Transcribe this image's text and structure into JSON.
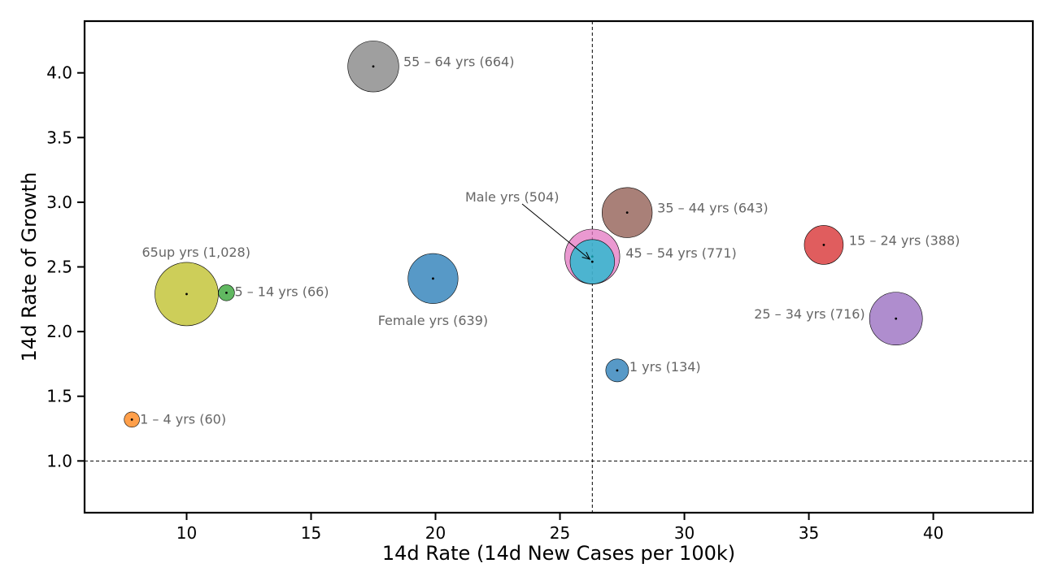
{
  "chart_data": {
    "type": "scatter",
    "title": "",
    "xlabel": "14d Rate (14d New Cases per 100k)",
    "ylabel": "14d Rate of Growth",
    "xlim": [
      5.9,
      44.0
    ],
    "ylim": [
      0.6,
      4.4
    ],
    "xticks": [
      10,
      15,
      20,
      25,
      30,
      35,
      40
    ],
    "yticks": [
      1.0,
      1.5,
      2.0,
      2.5,
      3.0,
      3.5,
      4.0
    ],
    "reference_lines": {
      "x": 26.3,
      "y": 1.0
    },
    "grid": false,
    "points": [
      {
        "label": "1 – 4 yrs (60)",
        "x": 7.8,
        "y": 1.32,
        "size": 60,
        "color": "#ff7f0e"
      },
      {
        "label": "5 – 14 yrs (66)",
        "x": 11.6,
        "y": 2.3,
        "size": 66,
        "color": "#2ca02c"
      },
      {
        "label": "65up yrs (1,028)",
        "x": 10.0,
        "y": 2.29,
        "size": 1028,
        "color": "#bcbd22"
      },
      {
        "label": "Female yrs (639)",
        "x": 19.9,
        "y": 2.41,
        "size": 639,
        "color": "#1f77b4"
      },
      {
        "label": "55 – 64 yrs (664)",
        "x": 17.5,
        "y": 4.05,
        "size": 664,
        "color": "#7f7f7f"
      },
      {
        "label": "45 – 54 yrs (771)",
        "x": 26.3,
        "y": 2.58,
        "size": 771,
        "color": "#e377c2"
      },
      {
        "label": "Male yrs (504)",
        "x": 26.3,
        "y": 2.54,
        "size": 504,
        "color": "#17becf"
      },
      {
        "label": "35 – 44 yrs (643)",
        "x": 27.7,
        "y": 2.92,
        "size": 643,
        "color": "#8c564b"
      },
      {
        "label": "1 yrs (134)",
        "x": 27.3,
        "y": 1.7,
        "size": 134,
        "color": "#1f77b4"
      },
      {
        "label": "15 – 24 yrs (388)",
        "x": 35.6,
        "y": 2.67,
        "size": 388,
        "color": "#d62728"
      },
      {
        "label": "25 – 34 yrs (716)",
        "x": 38.5,
        "y": 2.1,
        "size": 716,
        "color": "#9467bd"
      }
    ]
  }
}
